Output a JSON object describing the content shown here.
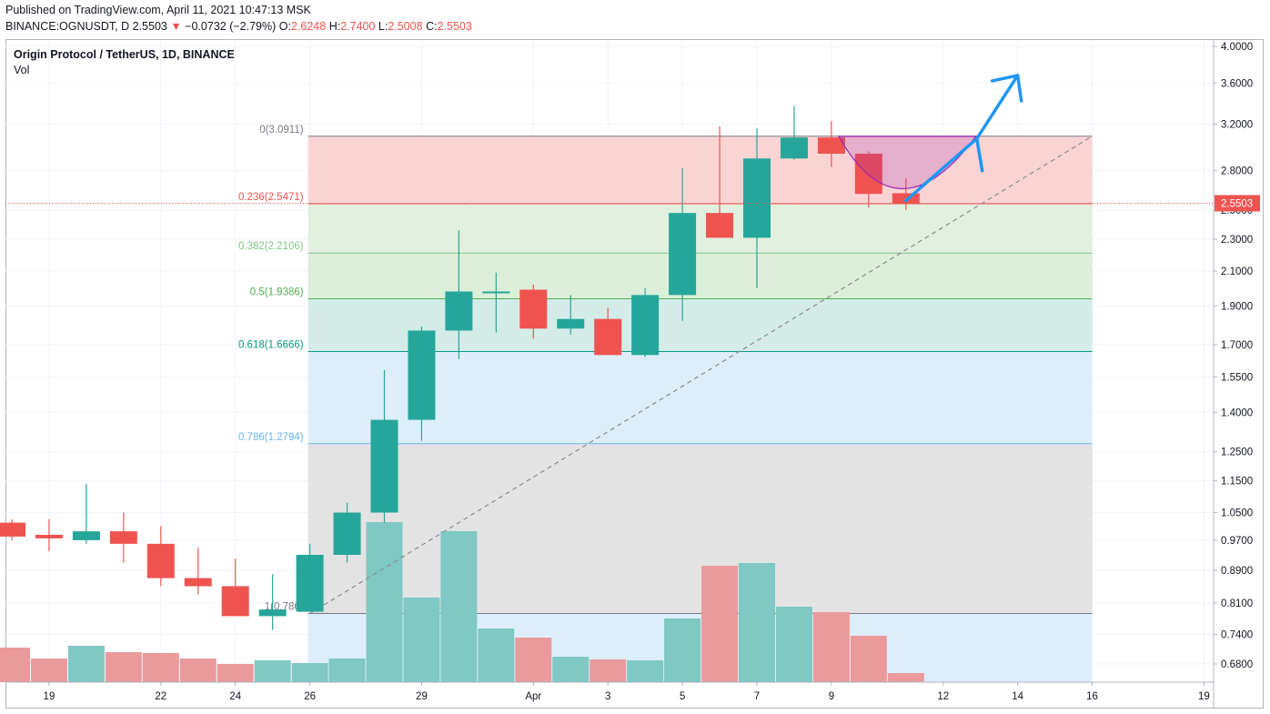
{
  "header": {
    "published": "Published on TradingView.com, April 11, 2021 10:47:13 MSK",
    "symbol": "BINANCE:OGNUSDT, D",
    "last": "2.5503",
    "change": "−0.0732 (−2.79%)",
    "open_label": "O:",
    "open": "2.6248",
    "high_label": "H:",
    "high": "2.7400",
    "low_label": "L:",
    "low": "2.5008",
    "close_label": "C:",
    "close": "2.5503"
  },
  "legend": {
    "title": "Origin Protocol / TetherUS, 1D, BINANCE",
    "volume": "Vol"
  },
  "colors": {
    "up": "#26a69a",
    "down": "#ef5350",
    "up_vol": "#7fc8c3",
    "down_vol": "#eb9a9c",
    "arrow": "#2196f3",
    "cup": "#9c27b0"
  },
  "chart_data": {
    "type": "candlestick",
    "y_scale": "log",
    "ylim": [
      0.63,
      4.1
    ],
    "y_ticks": [
      4.0,
      3.6,
      3.2,
      2.8,
      2.5,
      2.3,
      2.1,
      1.9,
      1.7,
      1.55,
      1.4,
      1.25,
      1.15,
      1.05,
      0.97,
      0.89,
      0.81,
      0.74,
      0.68
    ],
    "y_tick_labels": [
      "4.0000",
      "3.6000",
      "3.2000",
      "2.8000",
      "2.5000",
      "2.3000",
      "2.1000",
      "1.9000",
      "1.7000",
      "1.5500",
      "1.4000",
      "1.2500",
      "1.1500",
      "1.0500",
      "0.9700",
      "0.8900",
      "0.8100",
      "0.7400",
      "0.6800"
    ],
    "x_ticks": [
      {
        "date": "2021-03-19",
        "label": "19"
      },
      {
        "date": "2021-03-22",
        "label": "22"
      },
      {
        "date": "2021-03-24",
        "label": "24"
      },
      {
        "date": "2021-03-26",
        "label": "26"
      },
      {
        "date": "2021-03-29",
        "label": "29"
      },
      {
        "date": "2021-04-01",
        "label": "Apr"
      },
      {
        "date": "2021-04-03",
        "label": "3"
      },
      {
        "date": "2021-04-05",
        "label": "5"
      },
      {
        "date": "2021-04-07",
        "label": "7"
      },
      {
        "date": "2021-04-09",
        "label": "9"
      },
      {
        "date": "2021-04-12",
        "label": "12"
      },
      {
        "date": "2021-04-14",
        "label": "14"
      },
      {
        "date": "2021-04-16",
        "label": "16"
      },
      {
        "date": "2021-04-19",
        "label": "19"
      }
    ],
    "x_range": [
      "2021-03-18",
      "2021-04-20"
    ],
    "candles": [
      {
        "date": "2021-03-18",
        "open": 1.02,
        "high": 1.03,
        "low": 0.97,
        "close": 0.98
      },
      {
        "date": "2021-03-19",
        "open": 0.985,
        "high": 1.03,
        "low": 0.94,
        "close": 0.975
      },
      {
        "date": "2021-03-20",
        "open": 0.97,
        "high": 1.14,
        "low": 0.96,
        "close": 0.995
      },
      {
        "date": "2021-03-21",
        "open": 0.995,
        "high": 1.05,
        "low": 0.91,
        "close": 0.96
      },
      {
        "date": "2021-03-22",
        "open": 0.96,
        "high": 1.01,
        "low": 0.85,
        "close": 0.87
      },
      {
        "date": "2021-03-23",
        "open": 0.87,
        "high": 0.95,
        "low": 0.83,
        "close": 0.85
      },
      {
        "date": "2021-03-24",
        "open": 0.85,
        "high": 0.92,
        "low": 0.78,
        "close": 0.78
      },
      {
        "date": "2021-03-25",
        "open": 0.78,
        "high": 0.88,
        "low": 0.75,
        "close": 0.795
      },
      {
        "date": "2021-03-26",
        "open": 0.79,
        "high": 0.96,
        "low": 0.79,
        "close": 0.93
      },
      {
        "date": "2021-03-27",
        "open": 0.93,
        "high": 1.08,
        "low": 0.91,
        "close": 1.05
      },
      {
        "date": "2021-03-28",
        "open": 1.05,
        "high": 1.58,
        "low": 1.02,
        "close": 1.37
      },
      {
        "date": "2021-03-29",
        "open": 1.37,
        "high": 1.79,
        "low": 1.29,
        "close": 1.77
      },
      {
        "date": "2021-03-30",
        "open": 1.77,
        "high": 2.36,
        "low": 1.63,
        "close": 1.98
      },
      {
        "date": "2021-03-31",
        "open": 1.98,
        "high": 2.09,
        "low": 1.76,
        "close": 1.98
      },
      {
        "date": "2021-04-01",
        "open": 1.99,
        "high": 2.02,
        "low": 1.73,
        "close": 1.78
      },
      {
        "date": "2021-04-02",
        "open": 1.78,
        "high": 1.96,
        "low": 1.75,
        "close": 1.83
      },
      {
        "date": "2021-04-03",
        "open": 1.83,
        "high": 1.89,
        "low": 1.65,
        "close": 1.65
      },
      {
        "date": "2021-04-04",
        "open": 1.65,
        "high": 2.0,
        "low": 1.64,
        "close": 1.96
      },
      {
        "date": "2021-04-05",
        "open": 1.96,
        "high": 2.82,
        "low": 1.82,
        "close": 2.48
      },
      {
        "date": "2021-04-06",
        "open": 2.48,
        "high": 3.18,
        "low": 2.31,
        "close": 2.31
      },
      {
        "date": "2021-04-07",
        "open": 2.31,
        "high": 3.16,
        "low": 2.0,
        "close": 2.9
      },
      {
        "date": "2021-04-08",
        "open": 2.9,
        "high": 3.37,
        "low": 2.89,
        "close": 3.08
      },
      {
        "date": "2021-04-09",
        "open": 3.08,
        "high": 3.23,
        "low": 2.83,
        "close": 2.94
      },
      {
        "date": "2021-04-10",
        "open": 2.94,
        "high": 2.96,
        "low": 2.52,
        "close": 2.62
      },
      {
        "date": "2021-04-11",
        "open": 2.6248,
        "high": 2.74,
        "low": 2.5008,
        "close": 2.5503
      }
    ],
    "volume_series": "Vol",
    "fibonacci": {
      "levels": [
        {
          "ratio": "0",
          "price": 3.0911,
          "label": "0(3.0911)",
          "line": "#787b86",
          "fill": "#fad4d3"
        },
        {
          "ratio": "0.236",
          "price": 2.5471,
          "label": "0.236(2.5471)",
          "line": "#ef5350",
          "fill": "#e2f0df"
        },
        {
          "ratio": "0.382",
          "price": 2.2106,
          "label": "0.382(2.2106)",
          "line": "#81c784",
          "fill": "#dbefd9"
        },
        {
          "ratio": "0.5",
          "price": 1.9386,
          "label": "0.5(1.9386)",
          "line": "#4caf50",
          "fill": "#d3ece8"
        },
        {
          "ratio": "0.618",
          "price": 1.6666,
          "label": "0.618(1.6666)",
          "line": "#089981",
          "fill": "#ddeefb"
        },
        {
          "ratio": "0.786",
          "price": 1.2794,
          "label": "0.786(1.2794)",
          "line": "#64b5f6",
          "fill": "#e3e3e3"
        },
        {
          "ratio": "1",
          "price": 0.786,
          "label": "1(0.786)",
          "line": "#787b86",
          "fill": null
        }
      ],
      "start_date": "2021-03-26",
      "end_date": "2021-04-16"
    },
    "trend_line": {
      "from": {
        "date": "2021-03-26",
        "price": 0.786
      },
      "to": {
        "date": "2021-04-16",
        "price": 3.0911
      }
    },
    "last_price": {
      "value": 2.5503,
      "label": "2.5503"
    }
  }
}
